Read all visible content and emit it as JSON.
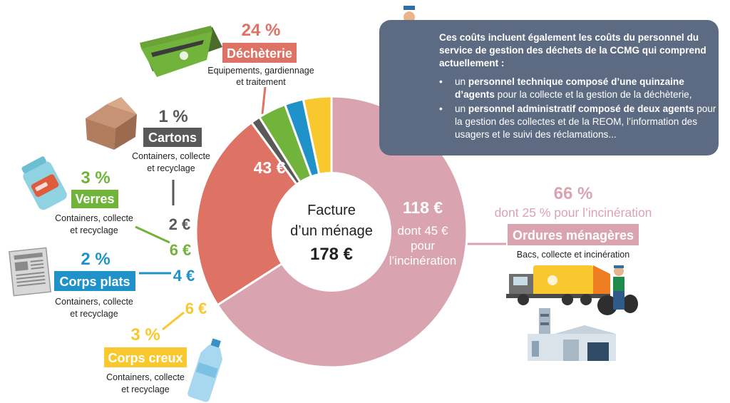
{
  "chart_data": {
    "type": "pie",
    "center_label": [
      "Facture",
      "d’un ménage"
    ],
    "center_total": "178 €",
    "slices": [
      {
        "key": "ordures",
        "value": 118,
        "amount_label": "118 €",
        "inner_note": [
          "dont 45 €",
          "pour",
          "l’incinération"
        ],
        "percent": "66 %",
        "percent_note": "dont 25 % pour l’incinération",
        "category": "Ordures ménagères",
        "description": [
          "Bacs, collecte et incinération"
        ],
        "color": "#d9a4b0"
      },
      {
        "key": "dechetterie",
        "value": 43,
        "amount_label": "43 €",
        "percent": "24 %",
        "category": "Déchèterie",
        "description": [
          "Equipements, gardiennage",
          "et traitement"
        ],
        "color": "#de7264"
      },
      {
        "key": "cartons",
        "value": 2,
        "amount_label": "2 €",
        "percent": "1 %",
        "category": "Cartons",
        "description": [
          "Containers, collecte",
          "et recyclage"
        ],
        "color": "#595959"
      },
      {
        "key": "verres",
        "value": 6,
        "amount_label": "6 €",
        "percent": "3 %",
        "category": "Verres",
        "description": [
          "Containers, collecte",
          "et recyclage"
        ],
        "color": "#72b43b"
      },
      {
        "key": "corps_plats",
        "value": 4,
        "amount_label": "4 €",
        "percent": "2 %",
        "category": "Corps plats",
        "description": [
          "Containers, collecte",
          "et recyclage"
        ],
        "color": "#1f93c9"
      },
      {
        "key": "corps_creux",
        "value": 6,
        "amount_label": "6 €",
        "percent": "3 %",
        "category": "Corps creux",
        "description": [
          "Containers, collecte",
          "et recyclage"
        ],
        "color": "#f8c82e"
      }
    ]
  },
  "info_box": {
    "heading": "Ces coûts incluent également les coûts du personnel du service de gestion des déchets de la CCMG qui comprend actuellement :",
    "bullet_1": {
      "prefix": "un ",
      "bold": "personnel technique composé d’une quinzaine d’agents",
      "rest": " pour la collecte et la gestion de la déchèterie,"
    },
    "bullet_2": {
      "prefix": "un ",
      "bold": "personnel administratif composé de deux agents",
      "rest": " pour la gestion des collectes et de la REOM, l’information des usagers et le suivi des réclamations..."
    }
  },
  "icons": [
    "waste-skip-icon",
    "cardboard-box-icon",
    "glass-jar-icon",
    "newspaper-icon",
    "plastic-bottle-icon",
    "garbage-truck-icon",
    "worker-icon",
    "incinerator-plant-icon"
  ]
}
